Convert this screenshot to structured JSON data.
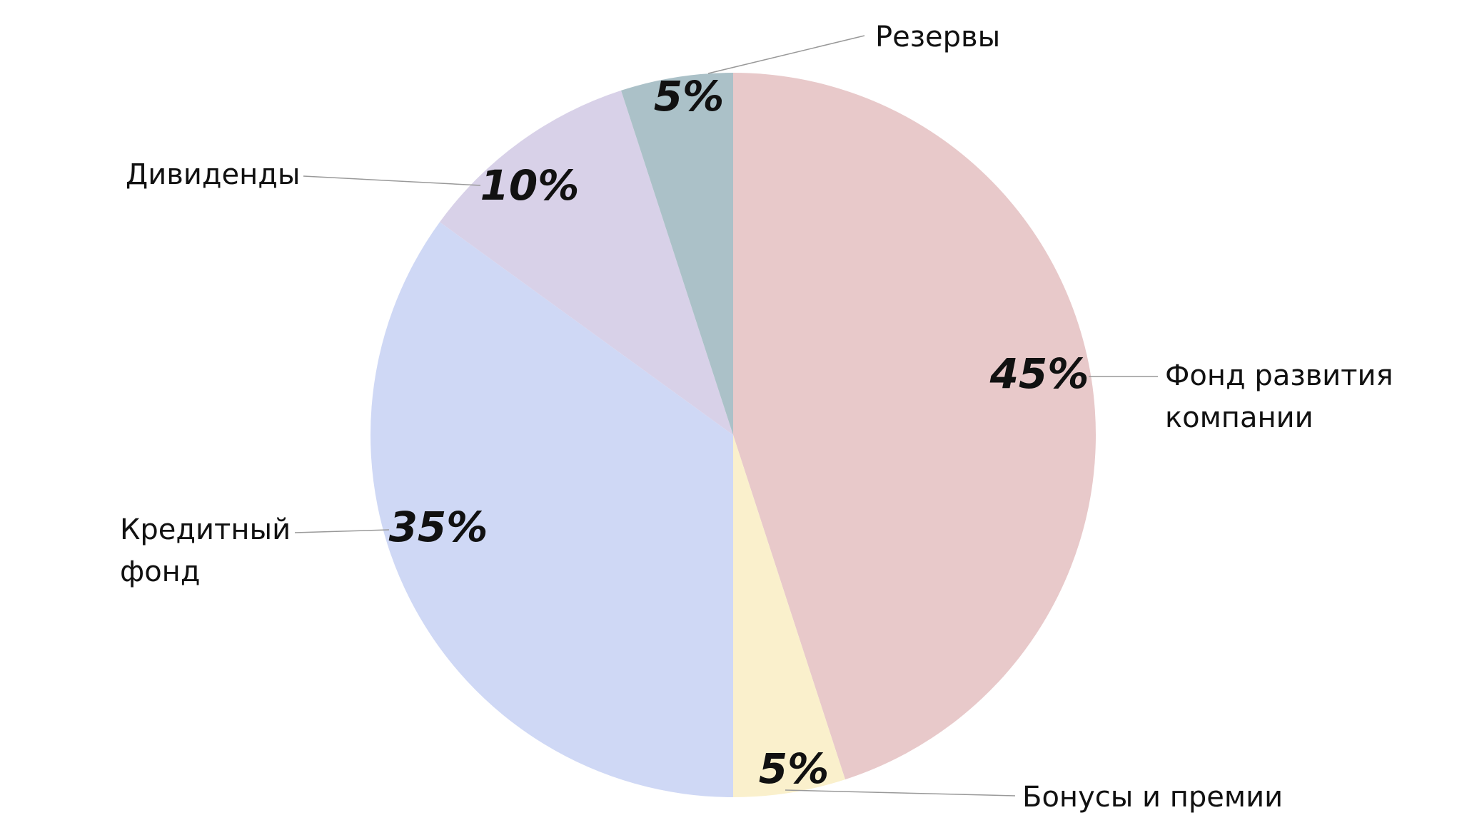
{
  "chart_data": {
    "type": "pie",
    "categories": [
      "Фонд развития компании",
      "Бонусы и премии",
      "Кредитный фонд",
      "Дивиденды",
      "Резервы"
    ],
    "values": [
      45,
      5,
      35,
      10,
      5
    ],
    "value_labels": [
      "45%",
      "5%",
      "35%",
      "10%",
      "5%"
    ],
    "colors": [
      "#e8c9ca",
      "#faf0cc",
      "#cfd8f5",
      "#d8d1e8",
      "#abc1c8"
    ]
  }
}
